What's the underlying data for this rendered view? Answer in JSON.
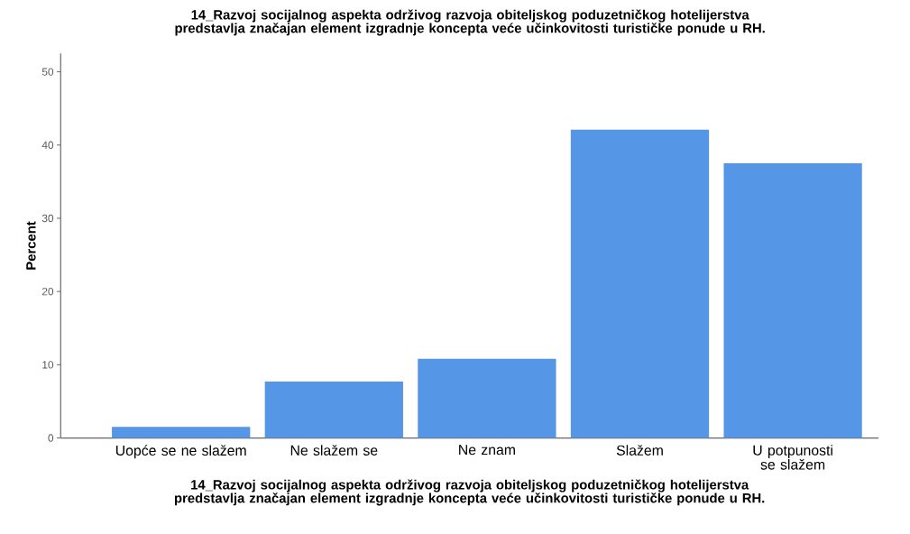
{
  "chart_data": {
    "type": "bar",
    "title": "14_Razvoj socijalnog aspekta održivog razvoja obiteljskog poduzetničkog hotelijerstva predstavlja značajan element izgradnje koncepta veće učinkovitosti turističke ponude u RH.",
    "xlabel": "14_Razvoj socijalnog aspekta održivog razvoja obiteljskog poduzetničkog hotelijerstva predstavlja značajan element izgradnje koncepta veće učinkovitosti turističke ponude u RH.",
    "ylabel": "Percent",
    "categories": [
      "Uopće se ne slažem",
      "Ne slažem se",
      "Ne znam",
      "Slažem",
      "U potpunosti se slažem"
    ],
    "values": [
      1.5,
      7.7,
      10.8,
      42.1,
      37.5
    ],
    "color": "#5596e6",
    "ylim": [
      0,
      52.5
    ],
    "yticks": [
      0,
      10,
      20,
      30,
      40,
      50
    ],
    "grid": false
  }
}
